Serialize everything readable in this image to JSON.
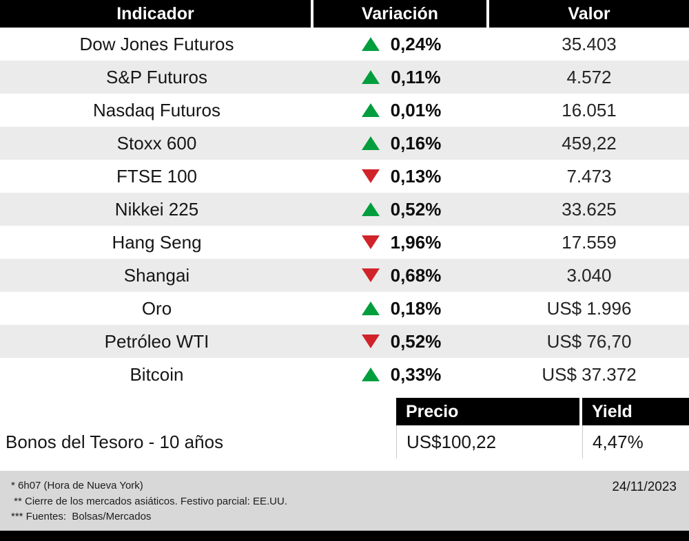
{
  "chart_data": [
    {
      "type": "table",
      "columns": [
        "Indicador",
        "Variación",
        "Valor"
      ],
      "rows": [
        {
          "indicator": "Dow Jones Futuros",
          "direction": "up",
          "variation": "0,24%",
          "value": "35.403"
        },
        {
          "indicator": "S&P Futuros",
          "direction": "up",
          "variation": "0,11%",
          "value": "4.572"
        },
        {
          "indicator": "Nasdaq Futuros",
          "direction": "up",
          "variation": "0,01%",
          "value": "16.051"
        },
        {
          "indicator": "Stoxx 600",
          "direction": "up",
          "variation": "0,16%",
          "value": "459,22"
        },
        {
          "indicator": "FTSE 100",
          "direction": "down",
          "variation": "0,13%",
          "value": "7.473"
        },
        {
          "indicator": "Nikkei 225",
          "direction": "up",
          "variation": "0,52%",
          "value": "33.625"
        },
        {
          "indicator": "Hang Seng",
          "direction": "down",
          "variation": "1,96%",
          "value": "17.559"
        },
        {
          "indicator": "Shangai",
          "direction": "down",
          "variation": "0,68%",
          "value": "3.040"
        },
        {
          "indicator": "Oro",
          "direction": "up",
          "variation": "0,18%",
          "value": "US$ 1.996"
        },
        {
          "indicator": "Petróleo WTI",
          "direction": "down",
          "variation": "0,52%",
          "value": "US$ 76,70"
        },
        {
          "indicator": "Bitcoin",
          "direction": "up",
          "variation": "0,33%",
          "value": "US$ 37.372"
        }
      ]
    },
    {
      "type": "table",
      "columns": [
        "Precio",
        "Yield"
      ],
      "rows": [
        {
          "label": "Bonos del Tesoro - 10 años",
          "price": "US$100,22",
          "yield": "4,47%"
        }
      ]
    }
  ],
  "footnotes": [
    "* 6h07 (Hora de Nueva York)",
    " ** Cierre de los mercados asiáticos. Festivo parcial: EE.UU.",
    "*** Fuentes:  Bolsas/Mercados"
  ],
  "date": "24/11/2023",
  "colors": {
    "green": "#009e3d",
    "red": "#d1232a",
    "alt": "#ebebeb",
    "footerbg": "#d8d8d8",
    "headerbg": "#000000"
  }
}
